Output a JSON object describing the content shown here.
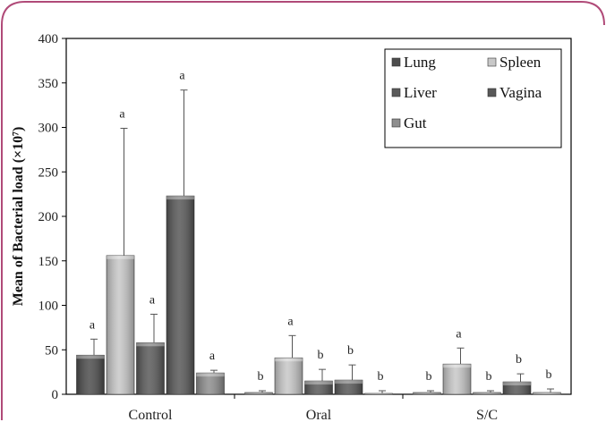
{
  "chart_data": {
    "type": "bar",
    "ylabel": "Mean of Bacterial load (×10⁷)",
    "ylim": [
      0,
      400
    ],
    "yticks": [
      0,
      50,
      100,
      150,
      200,
      250,
      300,
      350,
      400
    ],
    "categories": [
      "Control",
      "Oral",
      "S/C"
    ],
    "grid": false,
    "legend_position": "top-right",
    "series": [
      {
        "name": "Lung",
        "color": "#4d4d4d",
        "values": [
          44,
          2,
          2
        ],
        "errors": [
          18,
          2,
          2
        ],
        "labels": [
          "a",
          "b",
          "b"
        ]
      },
      {
        "name": "Spleen",
        "color": "#c8c8c8",
        "values": [
          156,
          41,
          34
        ],
        "errors": [
          143,
          25,
          18
        ],
        "labels": [
          "a",
          "a",
          "a"
        ]
      },
      {
        "name": "Liver",
        "color": "#5a5a5a",
        "values": [
          58,
          15,
          2
        ],
        "errors": [
          32,
          13,
          2
        ],
        "labels": [
          "a",
          "b",
          "b"
        ]
      },
      {
        "name": "Vagina",
        "color": "#585858",
        "values": [
          223,
          16,
          14
        ],
        "errors": [
          119,
          17,
          9
        ],
        "labels": [
          "a",
          "b",
          "b"
        ]
      },
      {
        "name": "Gut",
        "color": "#8e8e8e",
        "values": [
          24,
          1,
          2
        ],
        "errors": [
          3,
          3,
          4
        ],
        "labels": [
          "a",
          "b",
          "b"
        ]
      }
    ]
  }
}
